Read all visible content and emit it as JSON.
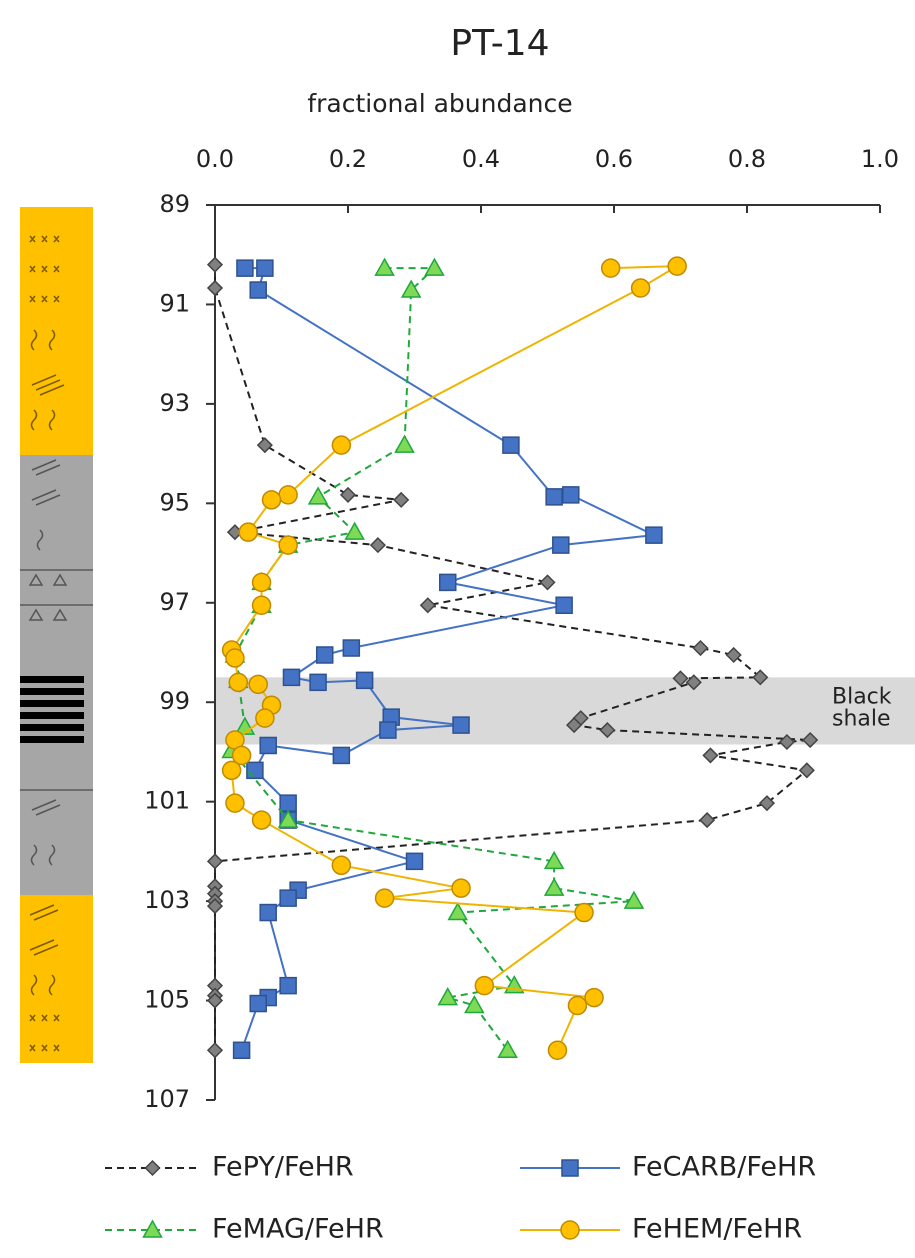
{
  "chart_data": {
    "type": "profile",
    "title": "PT-14",
    "xlabel": "fractional abundance",
    "xlim": [
      0,
      1
    ],
    "xticks": [
      {
        "value": 0,
        "label": "0.0"
      },
      0.2,
      0.4,
      0.6,
      0.8,
      {
        "value": 1,
        "label": "1.0"
      }
    ],
    "ylim": [
      89,
      107
    ],
    "yticks": [
      89,
      91,
      93,
      95,
      97,
      99,
      101,
      103,
      105,
      107
    ],
    "y_inverted": true,
    "shaded_band": [
      98.5,
      99.85
    ],
    "band_label": [
      "Black",
      "shale"
    ],
    "series": [
      {
        "name": "FePY/FeHR",
        "color": "#222222",
        "marker_color": "#808080",
        "dashed": true,
        "marker": "diamond",
        "x": [
          0,
          0,
          0.075,
          0.2,
          0.28,
          0.03,
          0.245,
          0.5,
          0.32,
          0.73,
          0.78,
          0.82,
          0.7,
          0.72,
          0.55,
          0.54,
          0.59,
          0.895,
          0.86,
          0.745,
          0.89,
          0.83,
          0.74,
          0,
          0,
          0,
          0,
          0,
          0,
          0,
          0,
          0
        ],
        "y": [
          90.2,
          90.67,
          93.83,
          94.83,
          94.93,
          95.58,
          95.84,
          96.59,
          97.05,
          97.91,
          98.05,
          98.5,
          98.52,
          98.6,
          99.32,
          99.46,
          99.56,
          99.76,
          99.8,
          100.07,
          100.37,
          101.03,
          101.37,
          102.2,
          102.7,
          102.85,
          103.0,
          103.1,
          104.7,
          104.9,
          105.0,
          106.0
        ]
      },
      {
        "name": "FeCARB/FeHR",
        "color": "#4472c4",
        "marker_color": "#4472c4",
        "dashed": false,
        "marker": "square",
        "x": [
          0.045,
          0.075,
          0.065,
          0.445,
          0.51,
          0.535,
          0.66,
          0.52,
          0.35,
          0.525,
          0.205,
          0.165,
          0.115,
          0.155,
          0.225,
          0.265,
          0.37,
          0.26,
          0.19,
          0.08,
          0.06,
          0.11,
          0.11,
          0.3,
          0.125,
          0.11,
          0.08,
          0.11,
          0.08,
          0.065,
          0.04
        ],
        "y": [
          90.27,
          90.27,
          90.71,
          93.83,
          94.87,
          94.83,
          95.64,
          95.84,
          96.59,
          97.05,
          97.91,
          98.05,
          98.5,
          98.6,
          98.56,
          99.3,
          99.46,
          99.56,
          100.07,
          99.87,
          100.37,
          101.03,
          101.37,
          102.2,
          102.78,
          102.94,
          103.23,
          104.7,
          104.94,
          105.06,
          106.0
        ]
      },
      {
        "name": "FeMAG/FeHR",
        "color": "#1fa83c",
        "marker_color": "#7ed957",
        "dashed": true,
        "marker": "triangle",
        "x": [
          0.255,
          0.33,
          0.295,
          0.285,
          0.155,
          0.21,
          0.11,
          0.07,
          0.07,
          0.03,
          0.035,
          0.045,
          0.025,
          0.11,
          0.51,
          0.51,
          0.63,
          0.365,
          0.45,
          0.35,
          0.39,
          0.44
        ],
        "y": [
          90.27,
          90.27,
          90.71,
          93.83,
          94.87,
          95.58,
          95.84,
          96.59,
          97.05,
          98.05,
          98.56,
          99.5,
          99.97,
          101.37,
          102.2,
          102.74,
          103.0,
          103.23,
          104.7,
          104.94,
          105.1,
          106.0
        ]
      },
      {
        "name": "FeHEM/FeHR",
        "color": "#f0b400",
        "marker_color": "#ffc000",
        "dashed": false,
        "marker": "circle",
        "x": [
          0.595,
          0.695,
          0.64,
          0.19,
          0.11,
          0.085,
          0.05,
          0.11,
          0.07,
          0.07,
          0.025,
          0.03,
          0.035,
          0.065,
          0.085,
          0.075,
          0.03,
          0.04,
          0.025,
          0.03,
          0.07,
          0.19,
          0.37,
          0.255,
          0.555,
          0.405,
          0.57,
          0.545,
          0.515
        ],
        "y": [
          90.27,
          90.23,
          90.67,
          93.83,
          94.83,
          94.93,
          95.58,
          95.84,
          96.59,
          97.05,
          97.95,
          98.11,
          98.6,
          98.64,
          99.06,
          99.32,
          99.76,
          100.07,
          100.37,
          101.03,
          101.37,
          102.28,
          102.74,
          102.94,
          103.23,
          104.7,
          104.94,
          105.1,
          106.0
        ]
      }
    ]
  }
}
